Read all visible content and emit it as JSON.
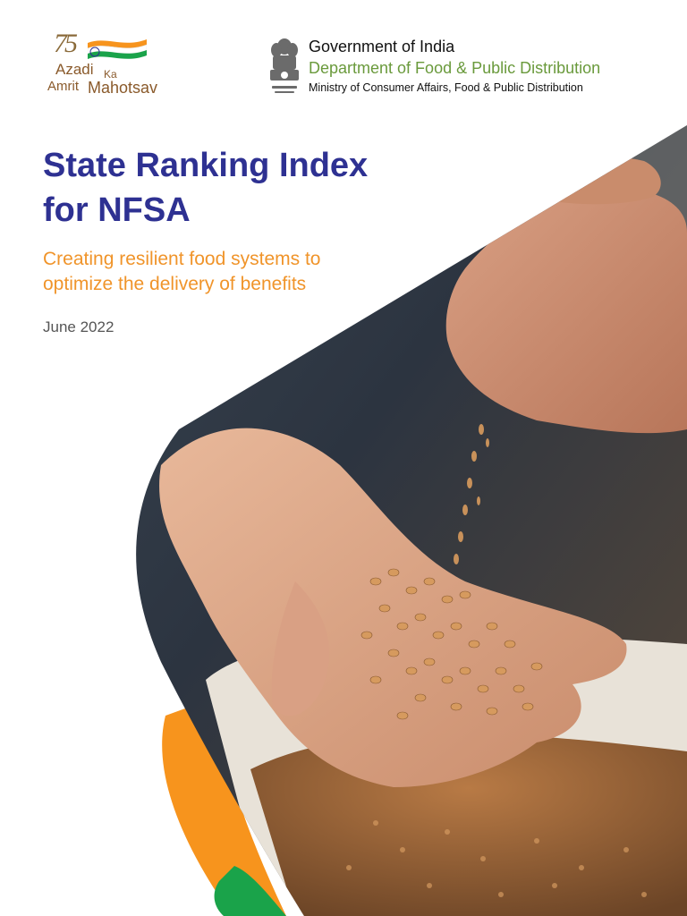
{
  "header": {
    "akam_logo": {
      "number": "75",
      "line1": "Azadi",
      "line1_small": "Ka",
      "line2a": "Amrit",
      "line2b": "Mahotsav"
    },
    "government": {
      "emblem_icon": "state-emblem-icon",
      "title": "Government of India",
      "department": "Department of Food & Public Distribution",
      "ministry": "Ministry of Consumer Affairs, Food & Public Distribution"
    }
  },
  "cover": {
    "title_line1": "State Ranking Index",
    "title_line2": "for NFSA",
    "subtitle_line1": "Creating resilient food systems to",
    "subtitle_line2": "optimize the delivery of benefits",
    "date": "June 2022"
  },
  "colors": {
    "title": "#2e3192",
    "subtitle": "#f0942a",
    "department": "#6a9a3c",
    "accent_orange": "#f7941d",
    "accent_green": "#1aa34a"
  },
  "image": {
    "subject": "grain-in-hands-photo"
  }
}
